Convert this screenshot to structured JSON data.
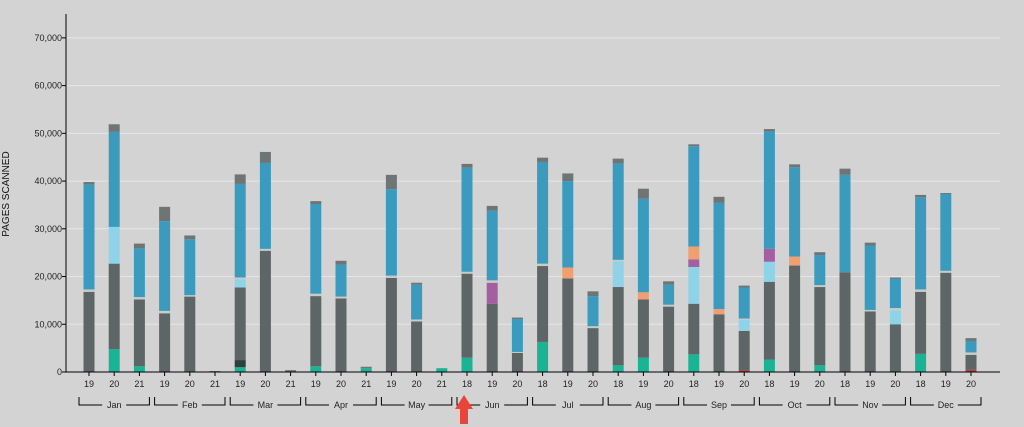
{
  "chart_data": {
    "type": "bar",
    "stacked": true,
    "ylabel": "PAGES SCANNED",
    "ylim": [
      0,
      75000
    ],
    "yticks": [
      0,
      10000,
      20000,
      30000,
      40000,
      50000,
      60000,
      70000
    ],
    "ytick_labels": [
      "0",
      "10,000",
      "20,000",
      "30,000",
      "40,000",
      "50,000",
      "60,000",
      "70,000"
    ],
    "grid": true,
    "categories": [
      {
        "label": "19",
        "month": "Jan"
      },
      {
        "label": "20",
        "month": "Jan"
      },
      {
        "label": "21",
        "month": "Jan"
      },
      {
        "label": "19",
        "month": "Feb"
      },
      {
        "label": "20",
        "month": "Feb"
      },
      {
        "label": "21",
        "month": "Feb"
      },
      {
        "label": "19",
        "month": "Mar"
      },
      {
        "label": "20",
        "month": "Mar"
      },
      {
        "label": "21",
        "month": "Mar"
      },
      {
        "label": "19",
        "month": "Apr"
      },
      {
        "label": "20",
        "month": "Apr"
      },
      {
        "label": "21",
        "month": "Apr"
      },
      {
        "label": "19",
        "month": "May"
      },
      {
        "label": "20",
        "month": "May"
      },
      {
        "label": "21",
        "month": "May"
      },
      {
        "label": "18",
        "month": "Jun"
      },
      {
        "label": "19",
        "month": "Jun"
      },
      {
        "label": "20",
        "month": "Jun"
      },
      {
        "label": "18",
        "month": "Jul"
      },
      {
        "label": "19",
        "month": "Jul"
      },
      {
        "label": "20",
        "month": "Jul"
      },
      {
        "label": "18",
        "month": "Aug"
      },
      {
        "label": "19",
        "month": "Aug"
      },
      {
        "label": "20",
        "month": "Aug"
      },
      {
        "label": "18",
        "month": "Sep"
      },
      {
        "label": "19",
        "month": "Sep"
      },
      {
        "label": "20",
        "month": "Sep"
      },
      {
        "label": "18",
        "month": "Oct"
      },
      {
        "label": "19",
        "month": "Oct"
      },
      {
        "label": "20",
        "month": "Oct"
      },
      {
        "label": "18",
        "month": "Nov"
      },
      {
        "label": "19",
        "month": "Nov"
      },
      {
        "label": "20",
        "month": "Nov"
      },
      {
        "label": "18",
        "month": "Dec"
      },
      {
        "label": "19",
        "month": "Dec"
      },
      {
        "label": "20",
        "month": "Dec"
      }
    ],
    "months": [
      "Jan",
      "Feb",
      "Mar",
      "Apr",
      "May",
      "Jun",
      "Jul",
      "Aug",
      "Sep",
      "Oct",
      "Nov",
      "Dec"
    ],
    "series": [
      {
        "color": "#1ab394",
        "values": [
          0,
          4800,
          1200,
          0,
          0,
          0,
          1000,
          0,
          0,
          1200,
          0,
          800,
          0,
          0,
          800,
          3000,
          0,
          0,
          6300,
          0,
          0,
          1400,
          3000,
          0,
          3700,
          0,
          0,
          2600,
          0,
          1400,
          0,
          0,
          0,
          3800,
          0,
          0
        ]
      },
      {
        "color": "#2f3f3e",
        "values": [
          0,
          0,
          0,
          0,
          0,
          0,
          1500,
          0,
          0,
          0,
          0,
          0,
          0,
          0,
          0,
          0,
          0,
          0,
          0,
          0,
          0,
          0,
          0,
          0,
          0,
          0,
          0,
          0,
          0,
          0,
          0,
          0,
          0,
          0,
          0,
          0
        ]
      },
      {
        "color": "#a94442",
        "values": [
          0,
          0,
          0,
          0,
          0,
          0,
          0,
          0,
          0,
          0,
          0,
          0,
          0,
          0,
          0,
          0,
          0,
          0,
          0,
          0,
          0,
          0,
          0,
          0,
          0,
          0,
          400,
          0,
          0,
          0,
          0,
          0,
          0,
          0,
          0,
          500
        ]
      },
      {
        "color": "#5e6566",
        "values": [
          16800,
          17900,
          14000,
          12300,
          15800,
          0,
          15200,
          25400,
          0,
          14700,
          15400,
          0,
          19700,
          10600,
          0,
          17600,
          14300,
          4000,
          15900,
          19600,
          9200,
          16400,
          12200,
          13700,
          10600,
          12100,
          8200,
          16300,
          22300,
          16400,
          20900,
          12700,
          10000,
          13000,
          20800,
          3100
        ]
      },
      {
        "color": "#8fd3e8",
        "values": [
          0,
          7700,
          0,
          0,
          0,
          0,
          1700,
          0,
          0,
          0,
          0,
          0,
          0,
          0,
          0,
          0,
          0,
          0,
          0,
          0,
          0,
          5400,
          0,
          0,
          7700,
          0,
          2300,
          4200,
          0,
          0,
          0,
          0,
          2900,
          0,
          0,
          0
        ]
      },
      {
        "color": "#a45fa0",
        "values": [
          0,
          0,
          0,
          0,
          0,
          0,
          0,
          0,
          0,
          0,
          0,
          0,
          0,
          0,
          0,
          0,
          4400,
          0,
          0,
          0,
          0,
          0,
          0,
          0,
          1600,
          0,
          0,
          2700,
          0,
          0,
          0,
          0,
          0,
          0,
          0,
          0
        ]
      },
      {
        "color": "#f0a070",
        "values": [
          0,
          0,
          0,
          0,
          0,
          0,
          0,
          0,
          0,
          0,
          0,
          0,
          0,
          0,
          0,
          0,
          0,
          0,
          0,
          2300,
          0,
          0,
          1500,
          0,
          2700,
          1100,
          0,
          0,
          1900,
          0,
          0,
          0,
          0,
          0,
          0,
          0
        ]
      },
      {
        "color": "#c8ccc4",
        "values": [
          500,
          0,
          500,
          500,
          300,
          0,
          400,
          400,
          0,
          500,
          400,
          0,
          500,
          400,
          0,
          400,
          500,
          200,
          500,
          0,
          400,
          300,
          0,
          400,
          0,
          0,
          300,
          0,
          0,
          400,
          0,
          300,
          500,
          500,
          400,
          500
        ]
      },
      {
        "color": "#3a9bbf",
        "values": [
          22000,
          19900,
          10200,
          18800,
          11700,
          0,
          19600,
          18000,
          0,
          18800,
          6700,
          0,
          18100,
          7300,
          0,
          21800,
          14600,
          6900,
          21300,
          18100,
          6300,
          20200,
          19600,
          4200,
          21000,
          22300,
          6500,
          24600,
          18700,
          6300,
          20400,
          13500,
          6100,
          19300,
          16100,
          2400
        ]
      },
      {
        "color": "#6f7575",
        "values": [
          500,
          1600,
          1000,
          3000,
          800,
          200,
          2000,
          2300,
          400,
          600,
          800,
          300,
          3000,
          400,
          0,
          800,
          1000,
          300,
          900,
          1600,
          1000,
          1000,
          2100,
          700,
          400,
          1200,
          400,
          500,
          600,
          600,
          1300,
          600,
          300,
          500,
          200,
          600
        ]
      }
    ]
  }
}
